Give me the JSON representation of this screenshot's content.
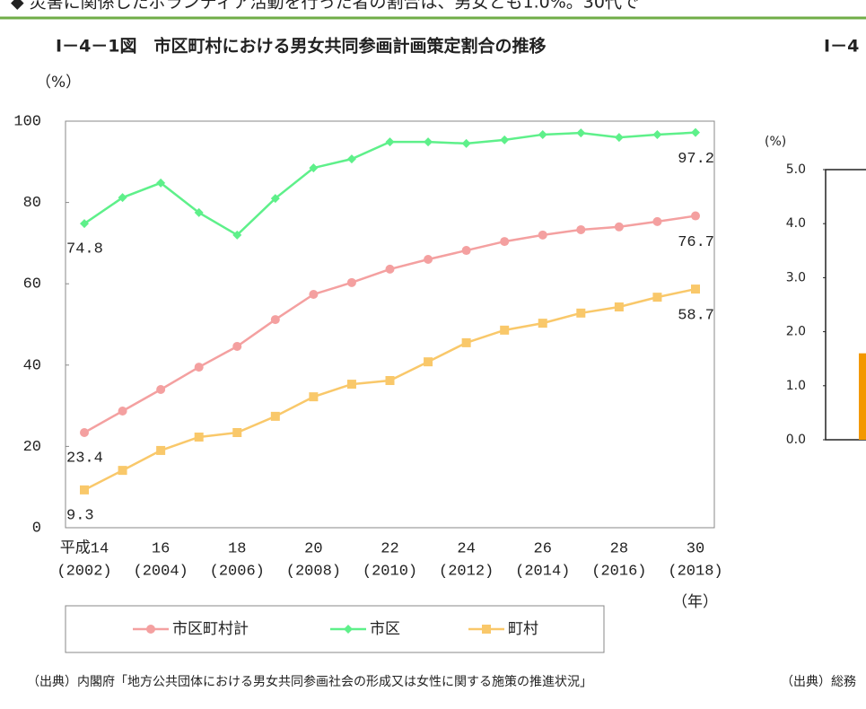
{
  "banner": {
    "text": "◆ 災害に関係したボランティア活動を行った者の割合は、男女とも1.0%。30代で"
  },
  "chart_data": [
    {
      "type": "line",
      "title": "Ⅰ－4－1図　市区町村における男女共同参画計画策定割合の推移",
      "y_unit": "（%）",
      "x_unit": "（年）",
      "categories": [
        "平成14",
        null,
        "16",
        null,
        "18",
        null,
        "20",
        null,
        "22",
        null,
        "24",
        null,
        "26",
        null,
        "28",
        null,
        "30"
      ],
      "category_sublabels": [
        "(2002)",
        null,
        "(2004)",
        null,
        "(2006)",
        null,
        "(2008)",
        null,
        "(2010)",
        null,
        "(2012)",
        null,
        "(2014)",
        null,
        "(2016)",
        null,
        "(2018)"
      ],
      "series": [
        {
          "name": "市区町村計",
          "color": "#f4a0a0",
          "marker": "circle",
          "values": [
            23.4,
            28.7,
            34.0,
            39.5,
            44.6,
            51.2,
            57.4,
            60.3,
            63.6,
            66.0,
            68.2,
            70.4,
            72.0,
            73.3,
            74.0,
            75.3,
            76.7
          ]
        },
        {
          "name": "市区",
          "color": "#5ef08a",
          "marker": "diamond",
          "values": [
            74.8,
            81.2,
            84.8,
            77.5,
            72.0,
            81.0,
            88.5,
            90.7,
            94.9,
            94.9,
            94.5,
            95.4,
            96.7,
            97.1,
            96.0,
            96.7,
            97.2
          ]
        },
        {
          "name": "町村",
          "color": "#f9c86a",
          "marker": "square",
          "values": [
            9.3,
            14.1,
            19.0,
            22.3,
            23.4,
            27.4,
            32.2,
            35.3,
            36.2,
            40.8,
            45.5,
            48.6,
            50.3,
            52.8,
            54.3,
            56.7,
            58.7
          ]
        }
      ],
      "ylim": [
        0,
        100
      ],
      "yticks": [
        0,
        20,
        40,
        60,
        80,
        100
      ],
      "grid": false,
      "source": "（出典）内閣府「地方公共団体における男女共同参画社会の形成又は女性に関する施策の推進状況」"
    },
    {
      "type": "bar",
      "title": "Ⅰ－4",
      "y_unit": "(%)",
      "categories": [
        null
      ],
      "values": [
        1.6
      ],
      "color": "#f39800",
      "ylim": [
        0,
        5
      ],
      "yticks": [
        {
          "value": 0,
          "label": "0.0"
        },
        {
          "value": 1,
          "label": "1.0"
        },
        {
          "value": 2,
          "label": "2.0"
        },
        {
          "value": 3,
          "label": "3.0"
        },
        {
          "value": 4,
          "label": "4.0"
        },
        {
          "value": 5,
          "label": "5.0"
        }
      ],
      "grid": false,
      "source": "（出典）総務"
    }
  ]
}
